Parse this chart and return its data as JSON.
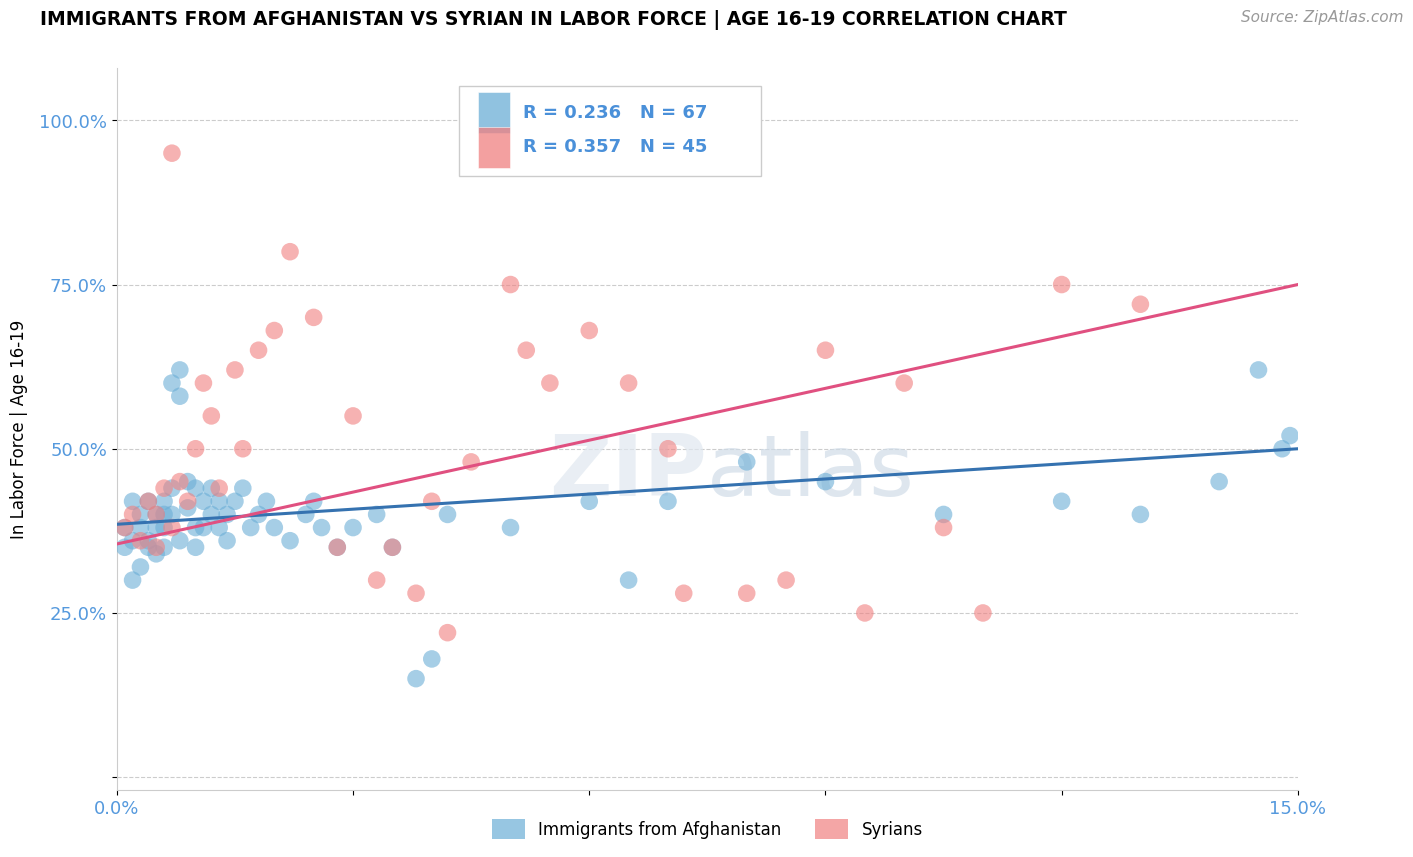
{
  "title": "IMMIGRANTS FROM AFGHANISTAN VS SYRIAN IN LABOR FORCE | AGE 16-19 CORRELATION CHART",
  "source": "Source: ZipAtlas.com",
  "ylabel": "In Labor Force | Age 16-19",
  "watermark": "ZIPatlas",
  "xlim": [
    0.0,
    0.15
  ],
  "ylim": [
    -0.02,
    1.08
  ],
  "xticks": [
    0.0,
    0.03,
    0.06,
    0.09,
    0.12,
    0.15
  ],
  "xticklabels": [
    "0.0%",
    "",
    "",
    "",
    "",
    "15.0%"
  ],
  "ytick_positions": [
    0.0,
    0.25,
    0.5,
    0.75,
    1.0
  ],
  "ytick_labels": [
    "",
    "25.0%",
    "50.0%",
    "75.0%",
    "100.0%"
  ],
  "afghanistan_R": 0.236,
  "afghanistan_N": 67,
  "syrian_R": 0.357,
  "syrian_N": 45,
  "afghanistan_color": "#6baed6",
  "syrian_color": "#f08080",
  "afghanistan_line_color": "#3572b0",
  "syrian_line_color": "#e05080",
  "grid_color": "#cccccc",
  "background_color": "#ffffff",
  "label_color": "#4a90d9",
  "tick_label_color": "#5599dd",
  "afghanistan_x": [
    0.001,
    0.001,
    0.002,
    0.002,
    0.002,
    0.003,
    0.003,
    0.003,
    0.004,
    0.004,
    0.004,
    0.005,
    0.005,
    0.005,
    0.006,
    0.006,
    0.006,
    0.006,
    0.007,
    0.007,
    0.007,
    0.008,
    0.008,
    0.008,
    0.009,
    0.009,
    0.01,
    0.01,
    0.01,
    0.011,
    0.011,
    0.012,
    0.012,
    0.013,
    0.013,
    0.014,
    0.014,
    0.015,
    0.016,
    0.017,
    0.018,
    0.019,
    0.02,
    0.022,
    0.024,
    0.025,
    0.026,
    0.028,
    0.03,
    0.033,
    0.035,
    0.038,
    0.04,
    0.042,
    0.05,
    0.06,
    0.065,
    0.07,
    0.08,
    0.09,
    0.105,
    0.12,
    0.13,
    0.14,
    0.145,
    0.148,
    0.149
  ],
  "afghanistan_y": [
    0.38,
    0.35,
    0.42,
    0.36,
    0.3,
    0.4,
    0.38,
    0.32,
    0.42,
    0.36,
    0.35,
    0.4,
    0.38,
    0.34,
    0.42,
    0.4,
    0.38,
    0.35,
    0.44,
    0.4,
    0.6,
    0.62,
    0.58,
    0.36,
    0.45,
    0.41,
    0.44,
    0.38,
    0.35,
    0.42,
    0.38,
    0.44,
    0.4,
    0.42,
    0.38,
    0.4,
    0.36,
    0.42,
    0.44,
    0.38,
    0.4,
    0.42,
    0.38,
    0.36,
    0.4,
    0.42,
    0.38,
    0.35,
    0.38,
    0.4,
    0.35,
    0.15,
    0.18,
    0.4,
    0.38,
    0.42,
    0.3,
    0.42,
    0.48,
    0.45,
    0.4,
    0.42,
    0.4,
    0.45,
    0.62,
    0.5,
    0.52
  ],
  "syrian_x": [
    0.001,
    0.002,
    0.003,
    0.004,
    0.005,
    0.005,
    0.006,
    0.007,
    0.007,
    0.008,
    0.009,
    0.01,
    0.011,
    0.012,
    0.013,
    0.015,
    0.016,
    0.018,
    0.02,
    0.022,
    0.025,
    0.028,
    0.03,
    0.033,
    0.035,
    0.038,
    0.04,
    0.042,
    0.045,
    0.05,
    0.052,
    0.055,
    0.06,
    0.065,
    0.07,
    0.072,
    0.08,
    0.085,
    0.09,
    0.095,
    0.1,
    0.105,
    0.11,
    0.12,
    0.13
  ],
  "syrian_y": [
    0.38,
    0.4,
    0.36,
    0.42,
    0.4,
    0.35,
    0.44,
    0.38,
    0.95,
    0.45,
    0.42,
    0.5,
    0.6,
    0.55,
    0.44,
    0.62,
    0.5,
    0.65,
    0.68,
    0.8,
    0.7,
    0.35,
    0.55,
    0.3,
    0.35,
    0.28,
    0.42,
    0.22,
    0.48,
    0.75,
    0.65,
    0.6,
    0.68,
    0.6,
    0.5,
    0.28,
    0.28,
    0.3,
    0.65,
    0.25,
    0.6,
    0.38,
    0.25,
    0.75,
    0.72
  ],
  "afg_line_x0": 0.0,
  "afg_line_y0": 0.385,
  "afg_line_x1": 0.15,
  "afg_line_y1": 0.5,
  "syr_line_x0": 0.0,
  "syr_line_y0": 0.355,
  "syr_line_x1": 0.15,
  "syr_line_y1": 0.75
}
